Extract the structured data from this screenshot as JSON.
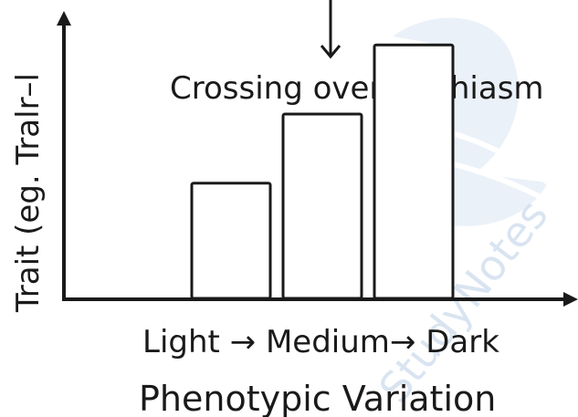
{
  "chart_data": {
    "type": "bar",
    "categories": [
      "Light",
      "Medium",
      "Dark"
    ],
    "values": [
      1.0,
      1.6,
      2.2
    ],
    "ylim": [
      0,
      2.4
    ],
    "grid": false,
    "ylabel": "Trait (eg. Tralr–l",
    "xtick_text": "Light → Medium→ Dark",
    "xlabel": "Phenotypic Variation",
    "annotation": "Crossing over at chiasm",
    "watermark": "StudyNotes"
  },
  "colors": {
    "bar_fill": "#ffffff",
    "bar_stroke": "#1a1a1a",
    "axis": "#1a1a1a",
    "text": "#1a1a1a",
    "watermark": "#c9d9ec"
  }
}
